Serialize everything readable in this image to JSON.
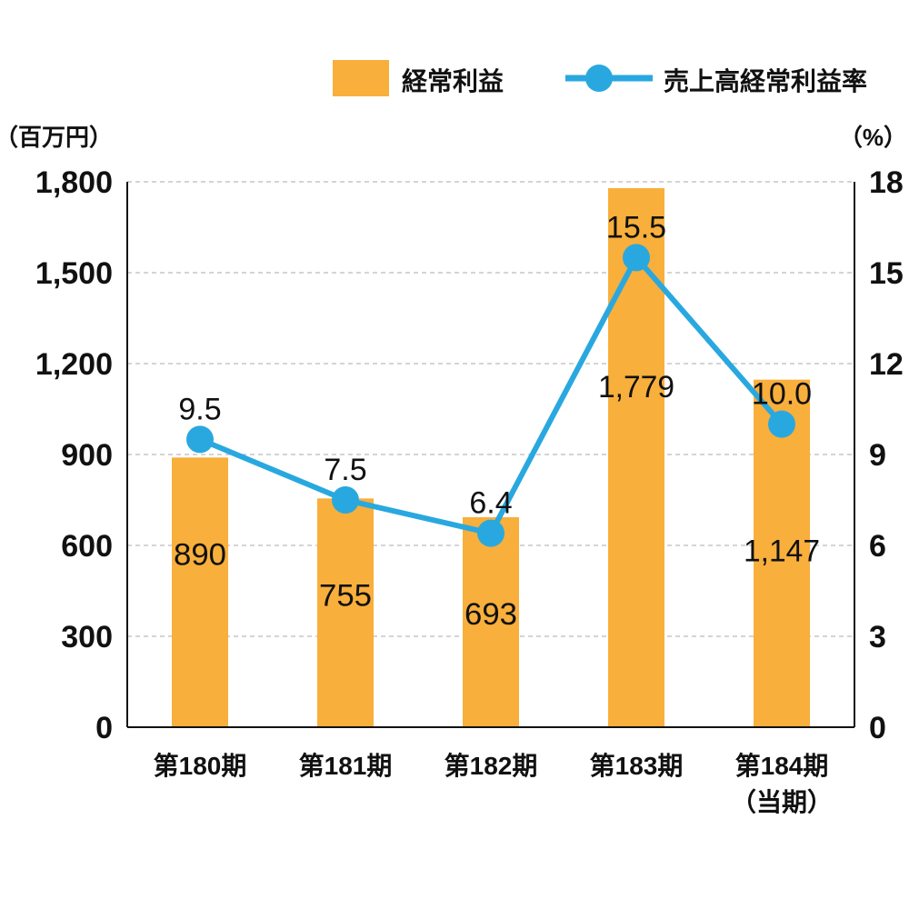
{
  "colors": {
    "bar": "#F8AF3B",
    "line": "#29A8E0",
    "grid": "#BBBBBB",
    "axis": "#111111"
  },
  "legend": {
    "bar_label": "経常利益",
    "line_label": "売上高経常利益率"
  },
  "chart_data": {
    "type": "bar",
    "categories": [
      [
        "第180期"
      ],
      [
        "第181期"
      ],
      [
        "第182期"
      ],
      [
        "第183期"
      ],
      [
        "第184期",
        "（当期）"
      ]
    ],
    "series": [
      {
        "name": "経常利益",
        "type": "bar",
        "axis": "left",
        "values": [
          890,
          755,
          693,
          1779,
          1147
        ],
        "labels": [
          "890",
          "755",
          "693",
          "1,779",
          "1,147"
        ]
      },
      {
        "name": "売上高経常利益率",
        "type": "line",
        "axis": "right",
        "values": [
          9.5,
          7.5,
          6.4,
          15.5,
          10.0
        ],
        "labels": [
          "9.5",
          "7.5",
          "6.4",
          "15.5",
          "10.0"
        ]
      }
    ],
    "left_axis": {
      "unit": "（百万円）",
      "ylim": [
        0,
        1800
      ],
      "ticks": [
        0,
        300,
        600,
        900,
        1200,
        1500,
        1800
      ],
      "tick_labels": [
        "0",
        "300",
        "600",
        "900",
        "1,200",
        "1,500",
        "1,800"
      ]
    },
    "right_axis": {
      "unit": "（%）",
      "ylim": [
        0,
        18
      ],
      "ticks": [
        0,
        3,
        6,
        9,
        12,
        15,
        18
      ],
      "tick_labels": [
        "0",
        "3",
        "6",
        "9",
        "12",
        "15",
        "18"
      ]
    },
    "grid": true,
    "legend_position": "top-right"
  }
}
